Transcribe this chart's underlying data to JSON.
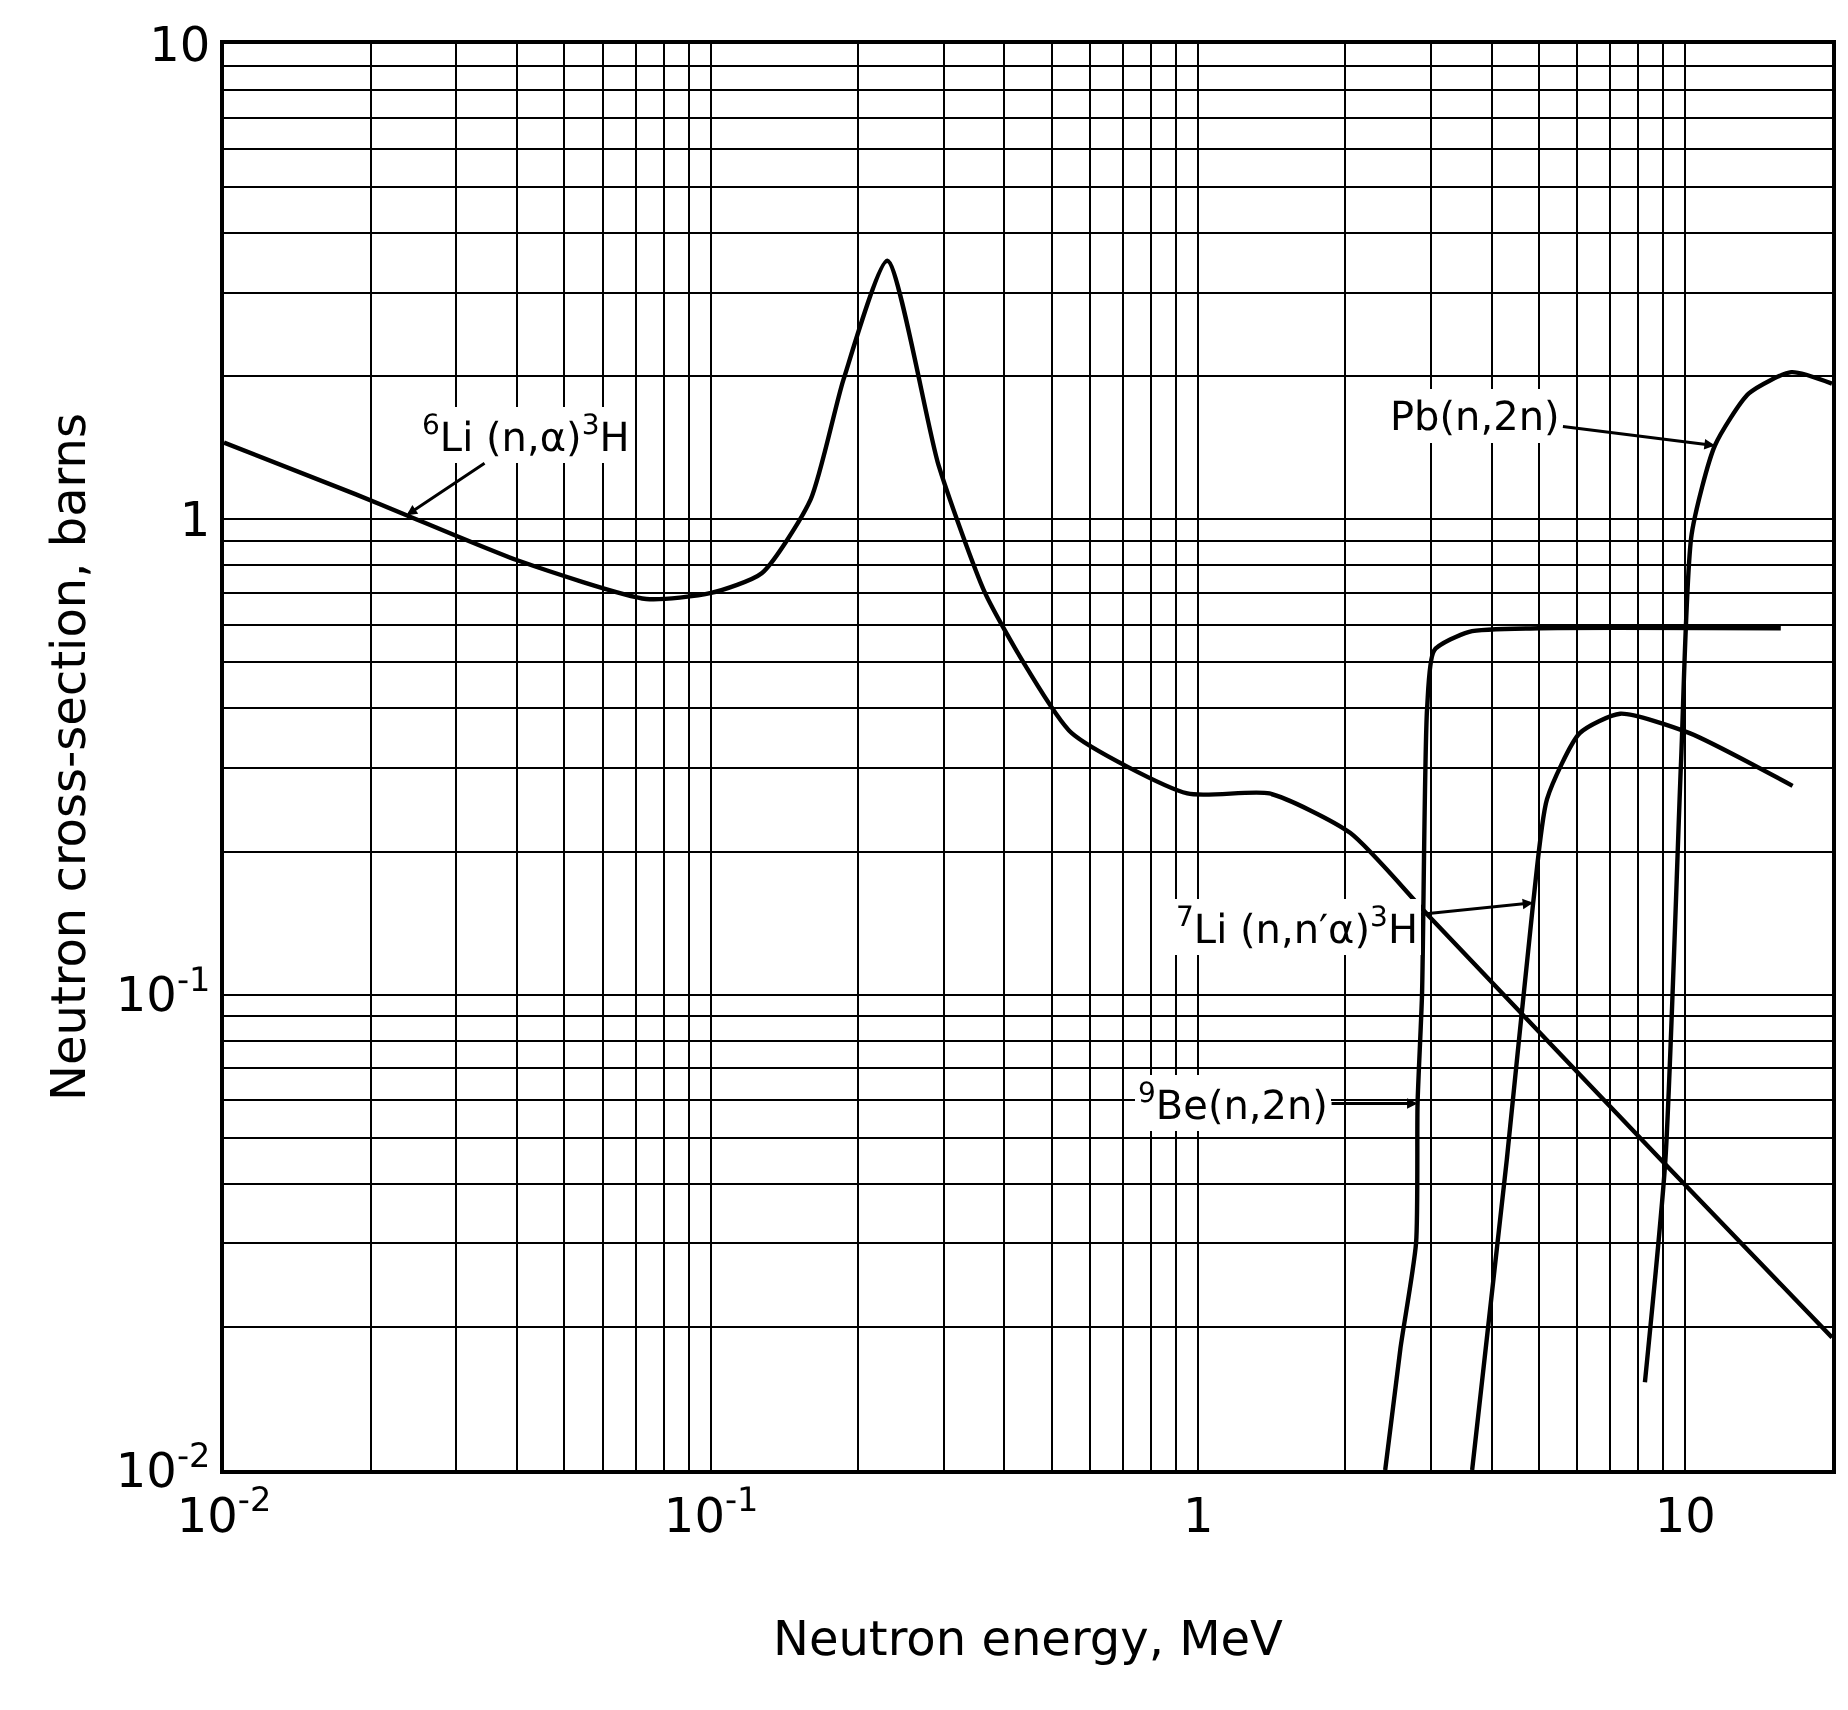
{
  "chart_data": {
    "type": "line",
    "xlabel": "Neutron energy, MeV",
    "ylabel": "Neutron cross-section, barns",
    "log": "xy",
    "grid": true,
    "marker": "none",
    "line_style": "solid",
    "xlim": [
      0.01,
      20
    ],
    "ylim": [
      0.01,
      10
    ],
    "xticks": [
      {
        "value": 0.01,
        "label": "10$^{-2}$"
      },
      {
        "value": 0.02,
        "label": null
      },
      {
        "value": 0.03,
        "label": null
      },
      {
        "value": 0.04,
        "label": null
      },
      {
        "value": 0.05,
        "label": null
      },
      {
        "value": 0.06,
        "label": null
      },
      {
        "value": 0.07,
        "label": null
      },
      {
        "value": 0.08,
        "label": null
      },
      {
        "value": 0.09,
        "label": null
      },
      {
        "value": 0.1,
        "label": "10$^{-1}$"
      },
      {
        "value": 0.2,
        "label": null
      },
      {
        "value": 0.3,
        "label": null
      },
      {
        "value": 0.4,
        "label": null
      },
      {
        "value": 0.5,
        "label": null
      },
      {
        "value": 0.6,
        "label": null
      },
      {
        "value": 0.7,
        "label": null
      },
      {
        "value": 0.8,
        "label": null
      },
      {
        "value": 0.9,
        "label": null
      },
      1,
      {
        "value": 2,
        "label": null
      },
      {
        "value": 3,
        "label": null
      },
      {
        "value": 4,
        "label": null
      },
      {
        "value": 5,
        "label": null
      },
      {
        "value": 6,
        "label": null
      },
      {
        "value": 7,
        "label": null
      },
      {
        "value": 8,
        "label": null
      },
      {
        "value": 9,
        "label": null
      },
      10
    ],
    "yticks": [
      {
        "value": 0.01,
        "label": "10$^{-2}$"
      },
      {
        "value": 0.02,
        "label": null
      },
      {
        "value": 0.03,
        "label": null
      },
      {
        "value": 0.04,
        "label": null
      },
      {
        "value": 0.05,
        "label": null
      },
      {
        "value": 0.06,
        "label": null
      },
      {
        "value": 0.07,
        "label": null
      },
      {
        "value": 0.08,
        "label": null
      },
      {
        "value": 0.09,
        "label": null
      },
      {
        "value": 0.1,
        "label": "10$^{-1}$"
      },
      {
        "value": 0.2,
        "label": null
      },
      {
        "value": 0.3,
        "label": null
      },
      {
        "value": 0.4,
        "label": null
      },
      {
        "value": 0.5,
        "label": null
      },
      {
        "value": 0.6,
        "label": null
      },
      {
        "value": 0.7,
        "label": null
      },
      {
        "value": 0.8,
        "label": null
      },
      {
        "value": 0.9,
        "label": null
      },
      1,
      {
        "value": 2,
        "label": null
      },
      {
        "value": 3,
        "label": null
      },
      {
        "value": 4,
        "label": null
      },
      {
        "value": 5,
        "label": null
      },
      {
        "value": 6,
        "label": null
      },
      {
        "value": 7,
        "label": null
      },
      {
        "value": 8,
        "label": null
      },
      {
        "value": 9,
        "label": null
      },
      10
    ],
    "series": [
      {
        "color": "#000000",
        "x": [
          0.01,
          0.0186,
          0.0237,
          0.04,
          0.0736,
          0.1,
          0.127,
          0.16,
          0.187,
          0.23,
          0.293,
          0.365,
          0.443,
          0.55,
          0.95,
          1.4,
          2.05,
          3.0,
          8.9,
          20
        ],
        "values": [
          1.45,
          1.13,
          1.02,
          0.82,
          0.68,
          0.7,
          0.77,
          1.1,
          1.97,
          3.5,
          1.3,
          0.7,
          0.49,
          0.355,
          0.265,
          0.265,
          0.219,
          0.145,
          0.045,
          0.019
        ]
      },
      {
        "color": "#000000",
        "x": [
          2.42,
          2.6,
          2.8,
          2.82,
          2.88,
          2.95,
          3.05,
          3.6,
          5.0,
          15.7
        ],
        "values": [
          0.01,
          0.018,
          0.03,
          0.059,
          0.1,
          0.4,
          0.53,
          0.58,
          0.59,
          0.59
        ]
      },
      {
        "color": "#000000",
        "x": [
          3.65,
          4.3,
          4.87,
          5.2,
          6.07,
          7.35,
          10.2,
          16.6
        ],
        "values": [
          0.01,
          0.045,
          0.156,
          0.258,
          0.355,
          0.39,
          0.355,
          0.275
        ]
      },
      {
        "color": "#000000",
        "x": [
          8.26,
          9.1,
          9.8,
          10.3,
          11.5,
          13.5,
          16.5,
          20
        ],
        "values": [
          0.0153,
          0.045,
          0.31,
          0.93,
          1.43,
          1.84,
          2.04,
          1.93
        ]
      }
    ],
    "annotations": [
      {
        "text": "$^{6}$Li (n,α)$^{3}$H",
        "x": 0.0237,
        "y": 1.02
      },
      {
        "text": "Pb(n,2n)",
        "x": 11.5,
        "y": 1.43
      },
      {
        "text": "$^{7}$Li (n,n′α)$^{3}$H",
        "x": 4.87,
        "y": 0.156
      },
      {
        "text": "$^{9}$Be(n,2n)",
        "x": 2.82,
        "y": 0.059
      }
    ]
  }
}
